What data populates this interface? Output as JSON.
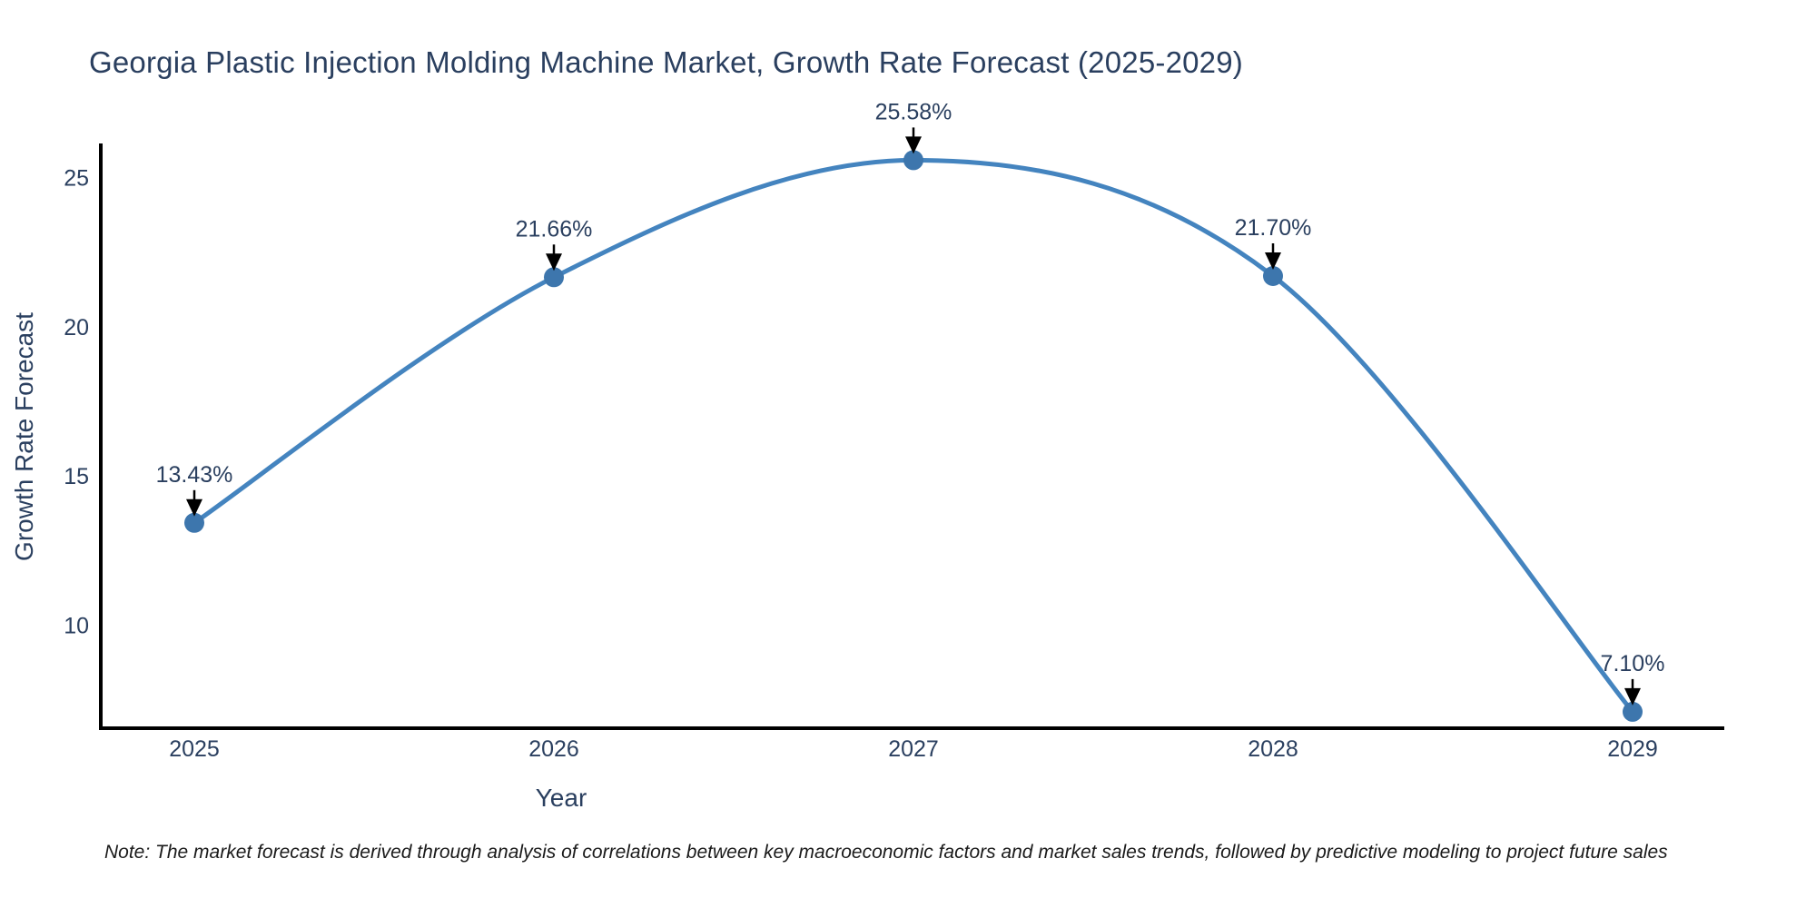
{
  "note": {
    "text": "Note: The market forecast is derived through analysis of correlations between key macroeconomic factors and market sales trends, followed by predictive modeling to project future sales"
  },
  "chart_data": {
    "type": "line",
    "title": "Georgia Plastic Injection Molding Machine Market, Growth Rate Forecast (2025-2029)",
    "xlabel": "Year",
    "ylabel": "Growth Rate Forecast",
    "categories": [
      "2025",
      "2026",
      "2027",
      "2028",
      "2029"
    ],
    "series": [
      {
        "name": "Growth Rate Forecast",
        "values": [
          13.43,
          21.66,
          25.58,
          21.7,
          7.1
        ]
      }
    ],
    "point_labels": [
      "13.43%",
      "21.66%",
      "25.58%",
      "21.70%",
      "7.10%"
    ],
    "yticks": [
      10,
      15,
      20,
      25
    ],
    "ylim": [
      6.55,
      26.08
    ],
    "line_shape": "spline",
    "grid": false,
    "legend": "none",
    "colors": {
      "line": "#4484bf",
      "marker": "#3d76ad",
      "text": "#2a3f5f",
      "axis": "#000000",
      "arrow": "#000000"
    }
  }
}
